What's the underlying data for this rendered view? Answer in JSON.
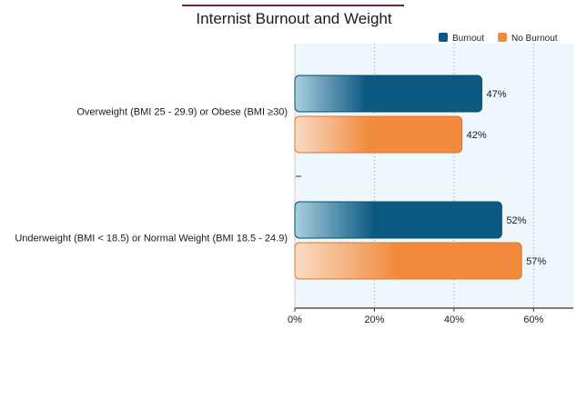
{
  "chart_data": {
    "type": "bar",
    "orientation": "horizontal",
    "title": "Internist Burnout and Weight",
    "categories": [
      "Overweight (BMI 25 - 29.9) or Obese (BMI ≥30)",
      "Underweight (BMI < 18.5) or Normal Weight (BMI 18.5 - 24.9)"
    ],
    "series": [
      {
        "name": "Burnout",
        "values": [
          47,
          52
        ],
        "labels": [
          "47%",
          "52%"
        ]
      },
      {
        "name": "No Burnout",
        "values": [
          42,
          57
        ],
        "labels": [
          "42%",
          "57%"
        ]
      }
    ],
    "xlim": [
      0,
      70
    ],
    "ticks": [
      0,
      20,
      40,
      60
    ],
    "tick_labels": [
      "0%",
      "20%",
      "40%",
      "60%"
    ],
    "grid": true,
    "legend_position": "top-right",
    "colors": {
      "Burnout": "#0c5a82",
      "No Burnout": "#f28a3d",
      "title_rule": "#7a1f3d",
      "plot_background": "#eef7fc"
    }
  }
}
